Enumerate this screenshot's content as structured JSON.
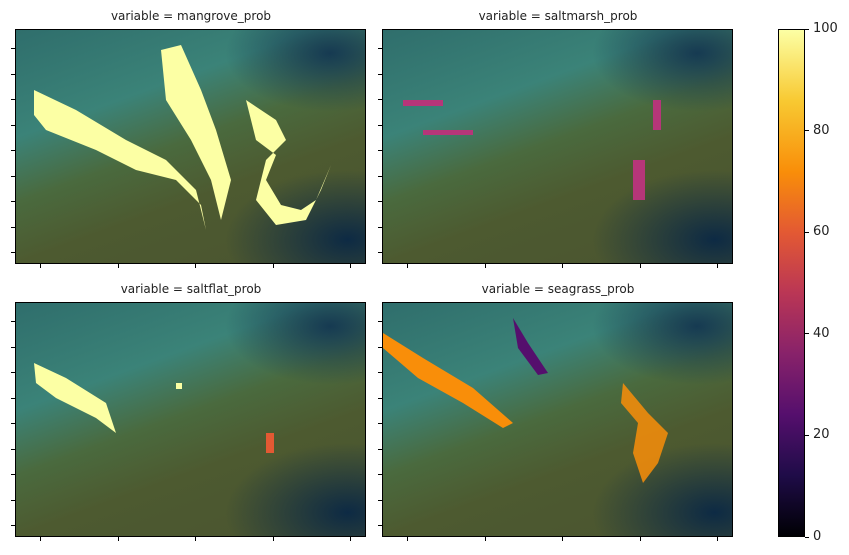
{
  "chart_data": {
    "type": "heatmap",
    "layout": "2x2 facet grid over satellite RGB imagery",
    "colormap": "inferno",
    "panels": [
      {
        "title": "variable = mangrove_prob"
      },
      {
        "title": "variable = saltmarsh_prob"
      },
      {
        "title": "variable = saltflat_prob"
      },
      {
        "title": "variable = seagrass_prob"
      }
    ],
    "colorbar": {
      "vmin": 0,
      "vmax": 100,
      "ticks": [
        "0",
        "20",
        "40",
        "60",
        "80",
        "100"
      ]
    },
    "axis_tick_labels": "none"
  }
}
